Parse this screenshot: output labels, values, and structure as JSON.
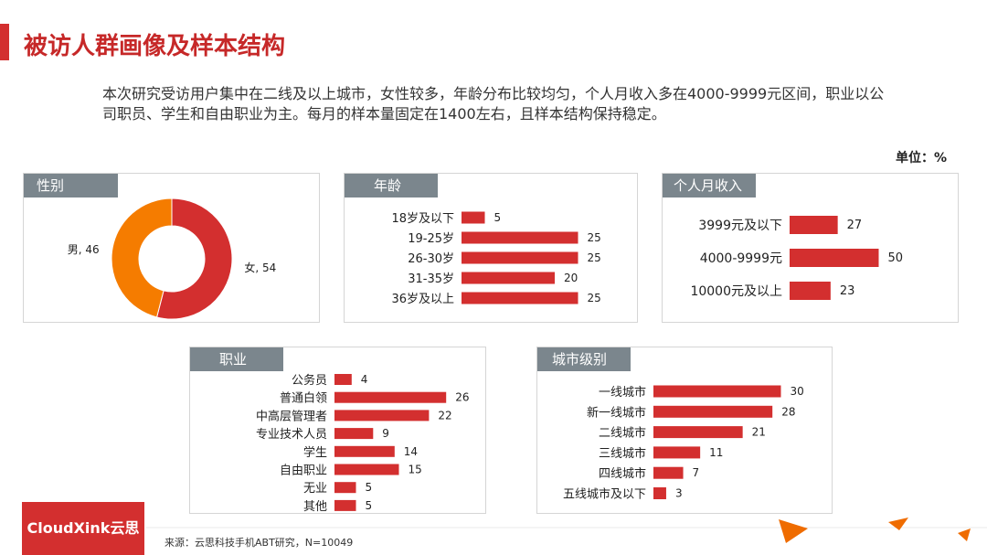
{
  "header": {
    "title": "被访人群画像及样本结构"
  },
  "description": "本次研究受访用户集中在二线及以上城市，女性较多，年龄分布比较均匀，个人月收入多在4000-9999元区间，职业以公司职员、学生和自由职业为主。每月的样本量固定在1400左右，且样本结构保持稳定。",
  "unit": "单位：%",
  "colors": {
    "accent": "#d32f2f",
    "orange": "#f57c00",
    "header_gray": "#7b868d"
  },
  "chart_data": [
    {
      "type": "pie",
      "title": "性别",
      "slices": [
        {
          "label": "女",
          "value": 54,
          "color": "#d32f2f"
        },
        {
          "label": "男",
          "value": 46,
          "color": "#f57c00"
        }
      ]
    },
    {
      "type": "bar",
      "title": "年龄",
      "orientation": "horizontal",
      "categories": [
        "18岁及以下",
        "19-25岁",
        "26-30岁",
        "31-35岁",
        "36岁及以上"
      ],
      "values": [
        5,
        25,
        25,
        20,
        25
      ]
    },
    {
      "type": "bar",
      "title": "个人月收入",
      "orientation": "horizontal",
      "categories": [
        "3999元及以下",
        "4000-9999元",
        "10000元及以上"
      ],
      "values": [
        27,
        50,
        23
      ]
    },
    {
      "type": "bar",
      "title": "职业",
      "orientation": "horizontal",
      "categories": [
        "公务员",
        "普通白领",
        "中高层管理者",
        "专业技术人员",
        "学生",
        "自由职业",
        "无业",
        "其他"
      ],
      "values": [
        4,
        26,
        22,
        9,
        14,
        15,
        5,
        5
      ]
    },
    {
      "type": "bar",
      "title": "城市级别",
      "orientation": "horizontal",
      "categories": [
        "一线城市",
        "新一线城市",
        "二线城市",
        "三线城市",
        "四线城市",
        "五线城市及以下"
      ],
      "values": [
        30,
        28,
        21,
        11,
        7,
        3
      ]
    }
  ],
  "footer": {
    "logo_text": "CloudXink云思",
    "source": "来源：云思科技手机ABT研究，N=10049"
  }
}
